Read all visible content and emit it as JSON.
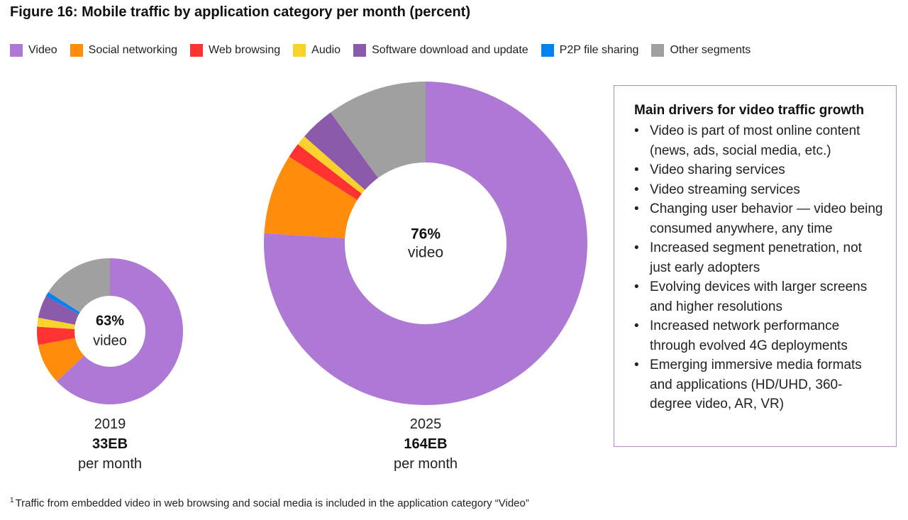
{
  "figure": {
    "title": "Figure 16: Mobile traffic by application category per month (percent)"
  },
  "legend": [
    {
      "label": "Video",
      "color": "#ad79d4"
    },
    {
      "label": "Social networking",
      "color": "#ff8c0a"
    },
    {
      "label": "Web browsing",
      "color": "#ff3232"
    },
    {
      "label": "Audio",
      "color": "#fad22d"
    },
    {
      "label": "Software download and update",
      "color": "#8c5aaa"
    },
    {
      "label": "P2P file sharing",
      "color": "#0082f0"
    },
    {
      "label": "Other segments",
      "color": "#a0a0a0"
    }
  ],
  "chart_data": [
    {
      "type": "pie",
      "donut": true,
      "year": "2019",
      "total": "33EB",
      "unit": "per month",
      "center_value": "63%",
      "center_label": "video",
      "categories": [
        "Video",
        "Social networking",
        "Web browsing",
        "Audio",
        "Software download and update",
        "P2P file sharing",
        "Other segments"
      ],
      "values": [
        63,
        9,
        4,
        2,
        5,
        1,
        16
      ],
      "colors": [
        "#ad79d4",
        "#ff8c0a",
        "#ff3232",
        "#fad22d",
        "#8c5aaa",
        "#0082f0",
        "#a0a0a0"
      ]
    },
    {
      "type": "pie",
      "donut": true,
      "year": "2025",
      "total": "164EB",
      "unit": "per month",
      "center_value": "76%",
      "center_label": "video",
      "categories": [
        "Video",
        "Social networking",
        "Web browsing",
        "Audio",
        "Software download and update",
        "P2P file sharing",
        "Other segments"
      ],
      "values": [
        76,
        8,
        1.5,
        1,
        3.5,
        0,
        10
      ],
      "colors": [
        "#ad79d4",
        "#ff8c0a",
        "#ff3232",
        "#fad22d",
        "#8c5aaa",
        "#0082f0",
        "#a0a0a0"
      ]
    }
  ],
  "drivers": {
    "title": "Main drivers for video traffic growth",
    "items": [
      "Video is part of most online content (news, ads, social media, etc.)",
      "Video sharing services",
      "Video streaming services",
      "Changing user behavior — video being consumed anywhere, any time",
      "Increased segment penetration, not just early adopters",
      "Evolving devices with larger screens and higher resolutions",
      "Increased network performance through evolved 4G deployments",
      "Emerging immersive media formats and applications (HD/UHD, 360-degree video, AR, VR)"
    ]
  },
  "footnote": {
    "marker": "1",
    "text": "Traffic from embedded video in web browsing and social media is included in the application category “Video”"
  }
}
